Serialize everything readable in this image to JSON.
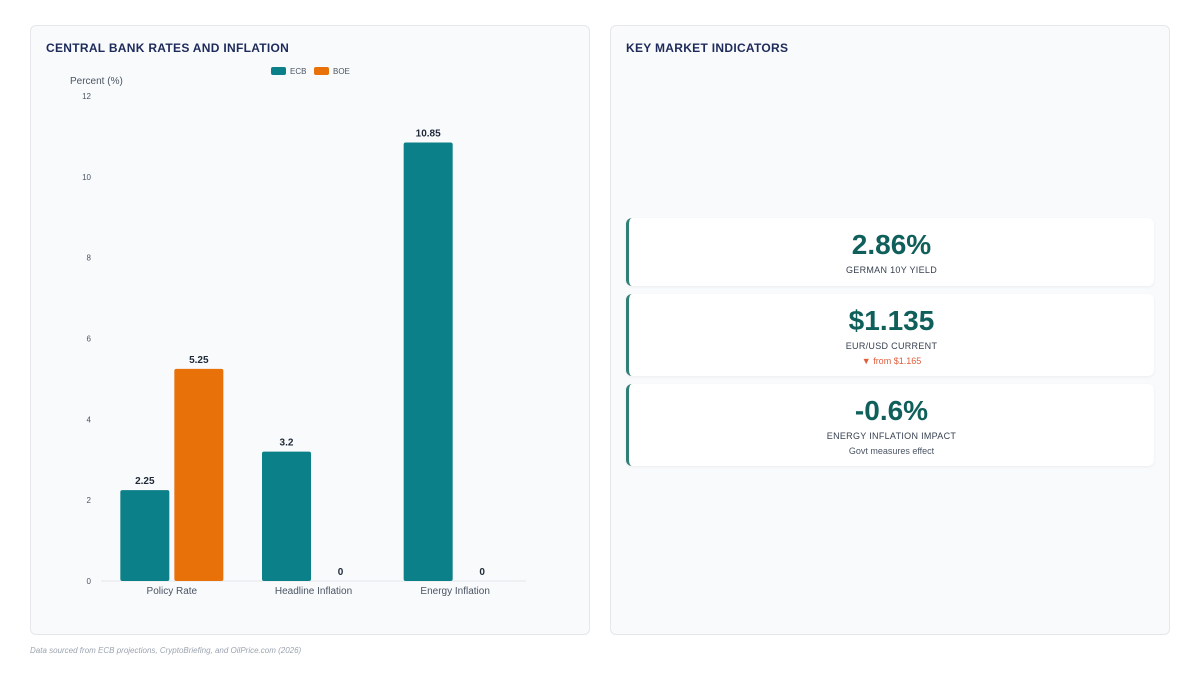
{
  "chart_panel": {
    "title": "CENTRAL BANK RATES AND INFLATION"
  },
  "chart_data": {
    "type": "bar",
    "title": "CENTRAL BANK RATES AND INFLATION",
    "ylabel": "Percent (%)",
    "xlabel": "",
    "categories": [
      "Policy Rate",
      "Headline Inflation",
      "Energy Inflation"
    ],
    "series": [
      {
        "name": "ECB",
        "color": "#0b8088",
        "values": [
          2.25,
          3.2,
          10.85
        ],
        "labels": [
          "2.25",
          "3.2",
          "10.85"
        ]
      },
      {
        "name": "BOE",
        "color": "#e8710a",
        "values": [
          5.25,
          0,
          0
        ],
        "labels": [
          "5.25",
          "0",
          "0"
        ]
      }
    ],
    "ylim": [
      0,
      12
    ],
    "yticks": [
      0,
      2,
      4,
      6,
      8,
      10,
      12
    ],
    "legend": "top-center",
    "grid": false
  },
  "kpi_panel": {
    "title": "KEY MARKET INDICATORS",
    "cards": [
      {
        "value": "2.86%",
        "label": "GERMAN 10Y YIELD",
        "note": ""
      },
      {
        "value": "$1.135",
        "label": "EUR/USD CURRENT",
        "note": "▼ from $1.165"
      },
      {
        "value": "-0.6%",
        "label": "ENERGY INFLATION IMPACT",
        "note": "Govt measures effect"
      }
    ]
  },
  "footer": {
    "source": "Data sourced from ECB projections, CryptoBriefing, and OilPrice.com (2026)"
  }
}
